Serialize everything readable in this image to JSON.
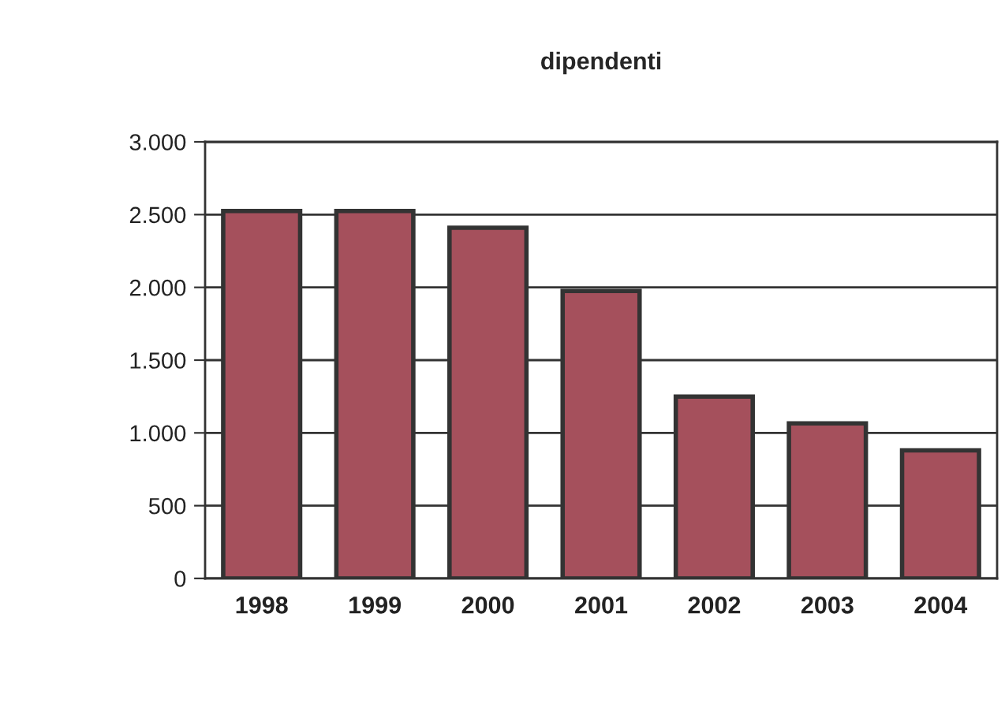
{
  "chart_data": {
    "type": "bar",
    "title": "dipendenti",
    "categories": [
      "1998",
      "1999",
      "2000",
      "2001",
      "2002",
      "2003",
      "2004"
    ],
    "values": [
      2525,
      2525,
      2410,
      1975,
      1250,
      1065,
      880
    ],
    "color": "#a5505c",
    "ylim": [
      0,
      3000
    ],
    "yticks": [
      {
        "value": 0,
        "label": "0"
      },
      {
        "value": 500,
        "label": "500"
      },
      {
        "value": 1000,
        "label": "1.000"
      },
      {
        "value": 1500,
        "label": "1.500"
      },
      {
        "value": 2000,
        "label": "2.000"
      },
      {
        "value": 2500,
        "label": "2.500"
      },
      {
        "value": 3000,
        "label": "3.000"
      }
    ],
    "grid": "y"
  }
}
